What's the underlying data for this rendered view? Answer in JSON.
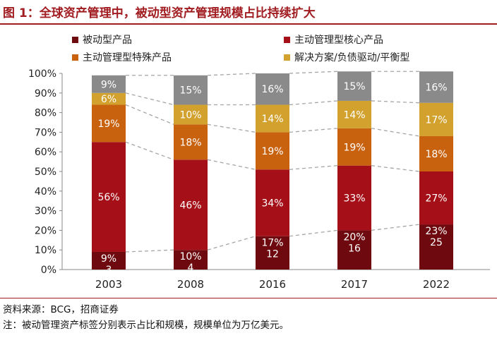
{
  "figure_title": "图 1：全球资产管理中，被动型资产管理规模占比持续扩大",
  "chart_data": {
    "type": "bar",
    "stacked": true,
    "categories": [
      "2003",
      "2008",
      "2016",
      "2017",
      "2022"
    ],
    "series": [
      {
        "name": "被动型产品",
        "color": "#6e0a0f",
        "values": [
          9,
          10,
          17,
          20,
          23
        ],
        "labels": [
          "9%",
          "10%",
          "17%",
          "20%",
          "23%"
        ]
      },
      {
        "name": "主动管理型核心产品",
        "color": "#a50f17",
        "values": [
          56,
          46,
          34,
          33,
          27
        ],
        "labels": [
          "56%",
          "46%",
          "34%",
          "33%",
          "27%"
        ]
      },
      {
        "name": "主动管理型特殊产品",
        "color": "#c9620f",
        "values": [
          19,
          18,
          19,
          19,
          18
        ],
        "labels": [
          "19%",
          "18%",
          "19%",
          "19%",
          "18%"
        ]
      },
      {
        "name": "解决方案/负债驱动/平衡型",
        "color": "#d2a12e",
        "values": [
          6,
          10,
          14,
          14,
          17
        ],
        "labels": [
          "6%",
          "10%",
          "14%",
          "14%",
          "17%"
        ]
      },
      {
        "name": "",
        "color": "#8a8a8a",
        "values": [
          9,
          15,
          16,
          15,
          16
        ],
        "labels": [
          "9%",
          "15%",
          "16%",
          "15%",
          "16%"
        ]
      }
    ],
    "passive_scale": [
      "3",
      "4",
      "12",
      "16",
      "25"
    ],
    "ylim": [
      0,
      100
    ],
    "yticks": [
      "0%",
      "10%",
      "20%",
      "30%",
      "40%",
      "50%",
      "60%",
      "70%",
      "80%",
      "90%",
      "100%"
    ],
    "legend_position": "top",
    "grid": false
  },
  "source": "资料来源：BCG，招商证券",
  "note": "注：被动管理资产标签分别表示占比和规模，规模单位为万亿美元。"
}
